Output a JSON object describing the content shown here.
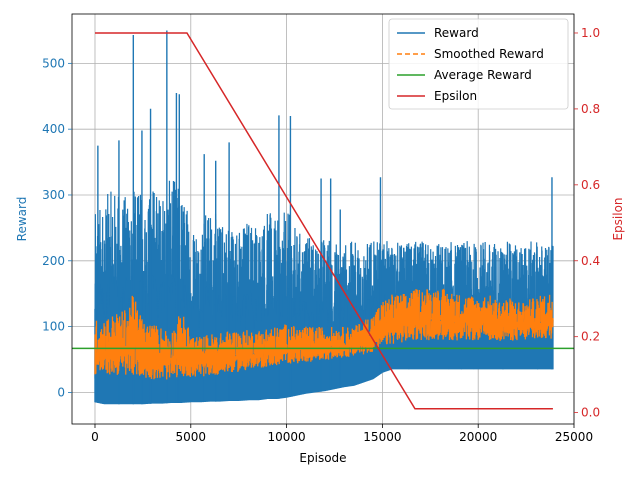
{
  "chart_data": {
    "type": "line",
    "xlabel": "Episode",
    "ylabel_left": "Reward",
    "ylabel_right": "Epsilon",
    "xlim": [
      -1200,
      25000
    ],
    "ylim_left": [
      -48,
      575
    ],
    "ylim_right": [
      -0.03,
      1.05
    ],
    "x_ticks": [
      0,
      5000,
      10000,
      15000,
      20000,
      25000
    ],
    "x_tick_labels": [
      "0",
      "5000",
      "10000",
      "15000",
      "20000",
      "25000"
    ],
    "y_left_ticks": [
      0,
      100,
      200,
      300,
      400,
      500
    ],
    "y_left_tick_labels": [
      "0",
      "100",
      "200",
      "300",
      "400",
      "500"
    ],
    "y_right_ticks": [
      0.0,
      0.2,
      0.4,
      0.6,
      0.8,
      1.0
    ],
    "y_right_tick_labels": [
      "0.0",
      "0.2",
      "0.4",
      "0.6",
      "0.8",
      "1.0"
    ],
    "grid": true,
    "legend_position": "top-right",
    "series": [
      {
        "name": "Reward",
        "axis": "left",
        "color": "#1f77b4",
        "style": "solid",
        "x": [
          0,
          500,
          1000,
          1500,
          2000,
          2500,
          3000,
          3500,
          4000,
          4500,
          5000,
          5500,
          6000,
          6500,
          7000,
          7500,
          8000,
          8500,
          9000,
          9500,
          10000,
          10500,
          11000,
          11500,
          12000,
          12500,
          13000,
          13500,
          14000,
          14500,
          15000,
          15500,
          16000,
          16500,
          17000,
          17500,
          18000,
          18500,
          19000,
          19500,
          20000,
          20500,
          21000,
          21500,
          22000,
          22500,
          23000,
          23500,
          23900
        ],
        "y_min": [
          -15,
          -18,
          -18,
          -18,
          -18,
          -18,
          -17,
          -17,
          -16,
          -16,
          -15,
          -15,
          -14,
          -14,
          -13,
          -13,
          -12,
          -12,
          -10,
          -10,
          -8,
          -5,
          -2,
          0,
          2,
          5,
          8,
          10,
          15,
          20,
          30,
          35,
          35,
          35,
          35,
          35,
          35,
          35,
          35,
          35,
          35,
          35,
          35,
          35,
          35,
          35,
          35,
          35,
          35
        ],
        "y_max": [
          272,
          300,
          310,
          300,
          310,
          300,
          320,
          300,
          330,
          310,
          270,
          260,
          290,
          260,
          270,
          250,
          270,
          260,
          280,
          260,
          280,
          250,
          240,
          230,
          240,
          230,
          230,
          230,
          230,
          230,
          230,
          230,
          230,
          230,
          230,
          230,
          230,
          230,
          230,
          230,
          230,
          230,
          230,
          230,
          230,
          230,
          230,
          230,
          230
        ],
        "spikes": [
          [
            150,
            375
          ],
          [
            1250,
            383
          ],
          [
            2000,
            543
          ],
          [
            2450,
            398
          ],
          [
            2900,
            431
          ],
          [
            3750,
            550
          ],
          [
            4250,
            455
          ],
          [
            4400,
            453
          ],
          [
            5700,
            362
          ],
          [
            6300,
            352
          ],
          [
            7000,
            380
          ],
          [
            9600,
            421
          ],
          [
            10200,
            420
          ],
          [
            11800,
            325
          ],
          [
            12300,
            325
          ],
          [
            12800,
            278
          ],
          [
            14900,
            327
          ],
          [
            23850,
            327
          ]
        ]
      },
      {
        "name": "Smoothed Reward",
        "axis": "left",
        "color": "#ff7f0e",
        "style": "dashed",
        "x": [
          0,
          500,
          1000,
          1500,
          2000,
          2500,
          3000,
          3500,
          4000,
          4500,
          5000,
          5500,
          6000,
          6500,
          7000,
          7500,
          8000,
          8500,
          9000,
          9500,
          10000,
          10500,
          11000,
          11500,
          12000,
          12500,
          13000,
          13500,
          14000,
          14500,
          15000,
          15500,
          16000,
          16500,
          17000,
          17500,
          18000,
          18500,
          19000,
          19500,
          20000,
          20500,
          21000,
          21500,
          22000,
          22500,
          23000,
          23500,
          23900
        ],
        "y_min": [
          10,
          10,
          10,
          5,
          5,
          5,
          5,
          5,
          5,
          8,
          10,
          12,
          14,
          16,
          18,
          20,
          22,
          25,
          28,
          30,
          32,
          34,
          36,
          38,
          40,
          42,
          44,
          46,
          48,
          50,
          55,
          60,
          62,
          64,
          65,
          65,
          65,
          66,
          66,
          66,
          67,
          67,
          67,
          67,
          67,
          68,
          68,
          68,
          68
        ],
        "y_max": [
          110,
          115,
          120,
          125,
          150,
          110,
          105,
          100,
          95,
          125,
          90,
          85,
          90,
          90,
          95,
          95,
          95,
          95,
          100,
          100,
          105,
          100,
          100,
          100,
          100,
          100,
          100,
          100,
          110,
          120,
          140,
          150,
          150,
          155,
          160,
          160,
          160,
          155,
          150,
          150,
          145,
          150,
          140,
          145,
          140,
          140,
          145,
          150,
          155
        ]
      },
      {
        "name": "Average Reward",
        "axis": "left",
        "color": "#2ca02c",
        "style": "solid",
        "x": [
          -1200,
          25000
        ],
        "y": [
          67,
          67
        ]
      },
      {
        "name": "Epsilon",
        "axis": "right",
        "color": "#d62728",
        "style": "solid",
        "x": [
          0,
          4800,
          16700,
          23900
        ],
        "y": [
          1.0,
          1.0,
          0.01,
          0.01
        ]
      }
    ]
  }
}
